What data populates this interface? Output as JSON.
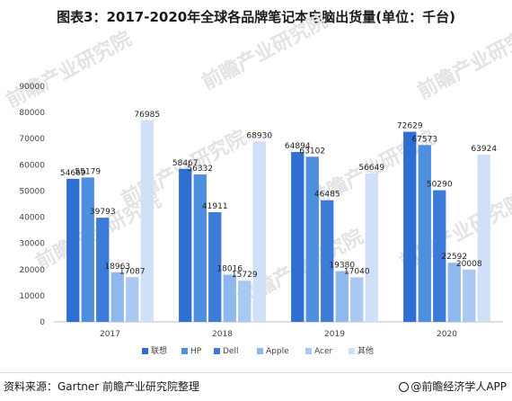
{
  "title": "图表3：2017-2020年全球各品牌笔记本电脑出货量(单位：千台)",
  "footer": {
    "source": "资料来源：Gartner 前瞻产业研究院整理",
    "brand": "@前瞻经济学人APP"
  },
  "watermark": {
    "text": "前瞻产业研究院"
  },
  "chart_data": {
    "type": "bar",
    "categories": [
      "2017",
      "2018",
      "2019",
      "2020"
    ],
    "series": [
      {
        "name": "联想",
        "color": "#2f6fd1",
        "values": [
          54669,
          58467,
          64894,
          72629
        ]
      },
      {
        "name": "HP",
        "color": "#4f8fe0",
        "values": [
          55179,
          56332,
          63102,
          67573
        ]
      },
      {
        "name": "Dell",
        "color": "#3d7bd8",
        "values": [
          39793,
          41911,
          46485,
          50290
        ]
      },
      {
        "name": "Apple",
        "color": "#8fb8ee",
        "values": [
          18963,
          18016,
          19380,
          22592
        ]
      },
      {
        "name": "Acer",
        "color": "#a9c9f3",
        "values": [
          17087,
          15729,
          17040,
          20008
        ]
      },
      {
        "name": "其他",
        "color": "#cfe0f8",
        "values": [
          76985,
          68930,
          56649,
          63924
        ]
      }
    ],
    "ylim": [
      0,
      90000
    ],
    "yticks": [
      0,
      10000,
      20000,
      30000,
      40000,
      50000,
      60000,
      70000,
      80000,
      90000
    ],
    "grid": false,
    "legend": "bottom",
    "xlabel": "",
    "ylabel": ""
  }
}
